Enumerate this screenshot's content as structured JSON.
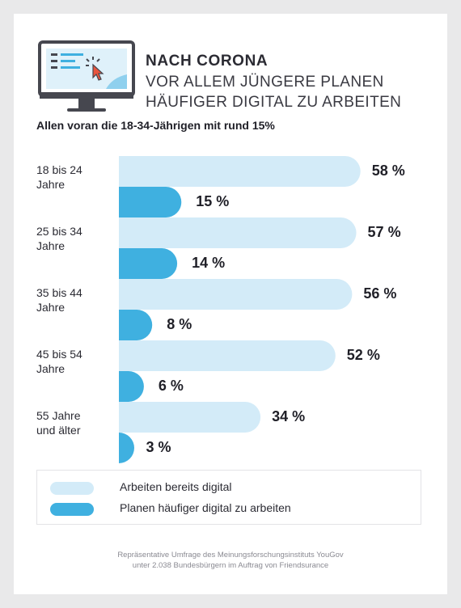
{
  "header": {
    "title_line1": "NACH CORONA",
    "title_line2": "VOR ALLEM JÜNGERE PLANEN",
    "title_line3": "HÄUFIGER DIGITAL ZU ARBEITEN",
    "subtitle": "Allen voran die 18-34-Jährigen mit rund 15%",
    "icon": "monitor-cursor-icon"
  },
  "chart_data": {
    "type": "bar",
    "orientation": "horizontal",
    "categories": [
      [
        "18 bis 24",
        "Jahre"
      ],
      [
        "25 bis 34",
        "Jahre"
      ],
      [
        "35 bis 44",
        "Jahre"
      ],
      [
        "45 bis 54",
        "Jahre"
      ],
      [
        "55 Jahre",
        "und älter"
      ]
    ],
    "series": [
      {
        "name": "Arbeiten bereits digital",
        "values": [
          58,
          57,
          56,
          52,
          34
        ],
        "color": "#d3ebf8"
      },
      {
        "name": "Planen häufiger digital zu arbeiten",
        "values": [
          15,
          14,
          8,
          6,
          3
        ],
        "color": "#3fb0e0"
      }
    ],
    "value_labels": [
      [
        "58 %",
        "15 %"
      ],
      [
        "57 %",
        "14 %"
      ],
      [
        "56 %",
        "8 %"
      ],
      [
        "52 %",
        "6 %"
      ],
      [
        "34 %",
        "3 %"
      ]
    ],
    "unit": "%",
    "xlim": [
      0,
      60
    ],
    "grid": false,
    "legend_position": "bottom"
  },
  "legend": {
    "items": [
      {
        "label": "Arbeiten bereits digital",
        "color": "#d3ebf8"
      },
      {
        "label": "Planen häufiger digital zu arbeiten",
        "color": "#3fb0e0"
      }
    ]
  },
  "footer": {
    "line1": "Repräsentative Umfrage des Meinungsforschungsinstituts YouGov",
    "line2": "unter 2.038 Bundesbürgern im Auftrag von Friendsurance"
  }
}
